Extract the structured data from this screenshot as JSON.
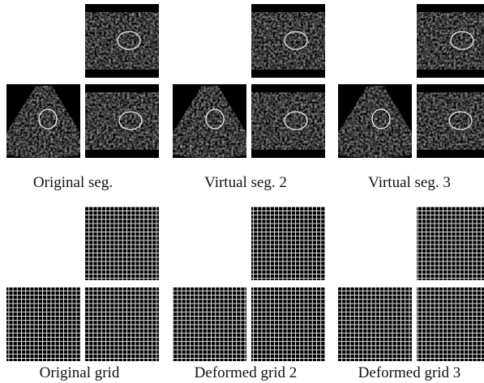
{
  "panels": [
    {
      "caption": "Original seg."
    },
    {
      "caption": "Virtual seg. 2"
    },
    {
      "caption": "Virtual seg. 3"
    },
    {
      "caption": "Original grid"
    },
    {
      "caption": "Deformed grid 2"
    },
    {
      "caption": "Deformed grid 3"
    }
  ]
}
